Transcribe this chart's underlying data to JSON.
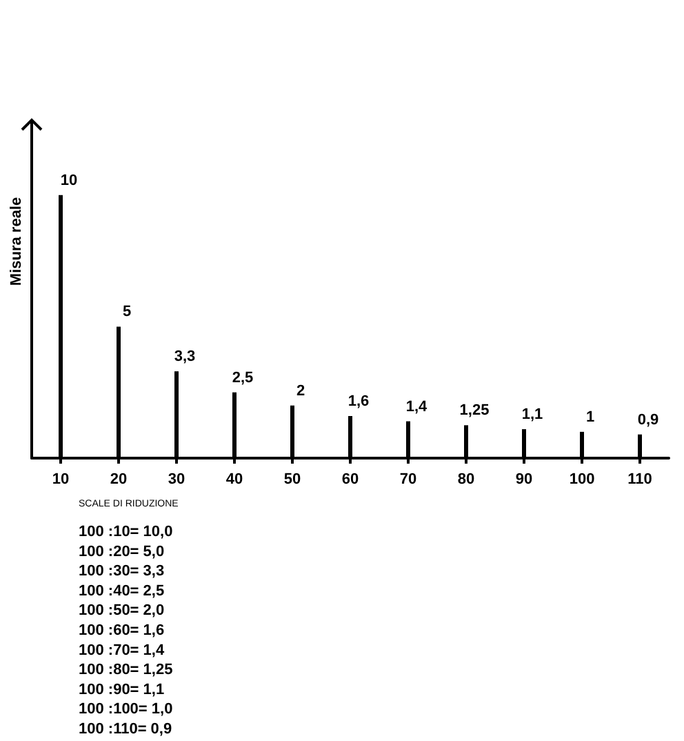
{
  "chart_data": {
    "type": "bar",
    "xlabel": "SCALE DI RIDUZIONE",
    "ylabel": "Misura reale",
    "categories": [
      "10",
      "20",
      "30",
      "40",
      "50",
      "60",
      "70",
      "80",
      "90",
      "100",
      "110"
    ],
    "values": [
      10,
      5,
      3.3,
      2.5,
      2,
      1.6,
      1.4,
      1.25,
      1.1,
      1,
      0.9
    ],
    "value_labels": [
      "10",
      "5",
      "3,3",
      "2,5",
      "2",
      "1,6",
      "1,4",
      "1,25",
      "1,1",
      "1",
      "0,9"
    ],
    "color": "#000000",
    "grid": false,
    "annotations": [
      "100 :10= 10,0",
      "100 :20= 5,0",
      "100 :30= 3,3",
      "100 :40= 2,5",
      "100 :50= 2,0",
      "100 :60= 1,6",
      "100 :70= 1,4",
      "100 :80= 1,25",
      "100 :90= 1,1",
      "100 :100= 1,0",
      "100 :110= 0,9"
    ]
  }
}
